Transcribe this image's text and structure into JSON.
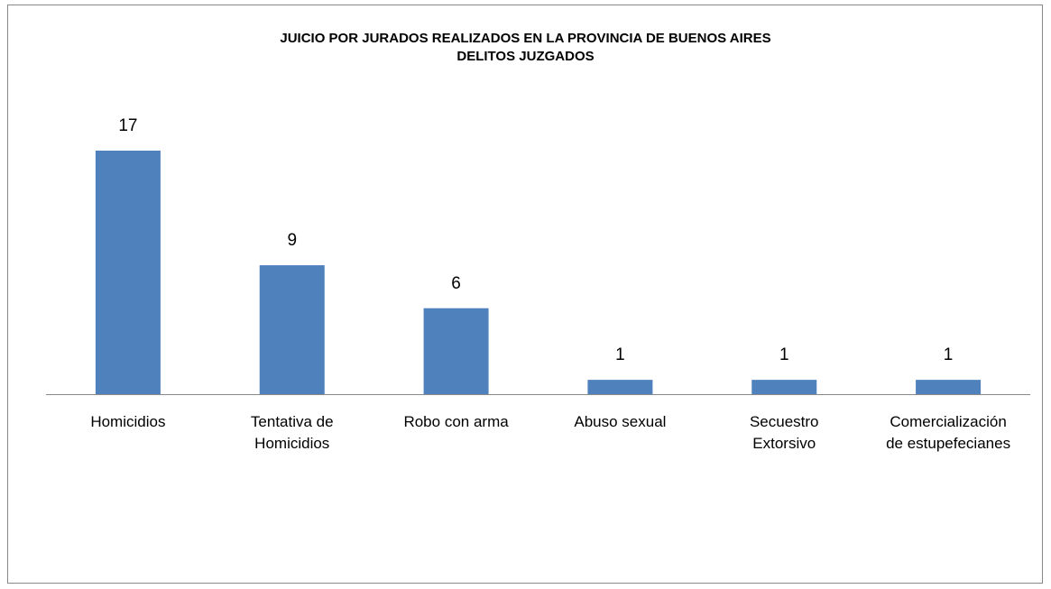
{
  "chart_data": {
    "type": "bar",
    "title": [
      "JUICIO POR JURADOS REALIZADOS EN LA PROVINCIA DE BUENOS AIRES",
      "DELITOS JUZGADOS"
    ],
    "categories": [
      "Homicidios",
      "Tentativa de Homicidios",
      "Robo con arma",
      "Abuso sexual",
      "Secuestro Extorsivo",
      "Comercialización de estupefecianes"
    ],
    "values": [
      17,
      9,
      6,
      1,
      1,
      1
    ],
    "color": "#4f81bd"
  }
}
